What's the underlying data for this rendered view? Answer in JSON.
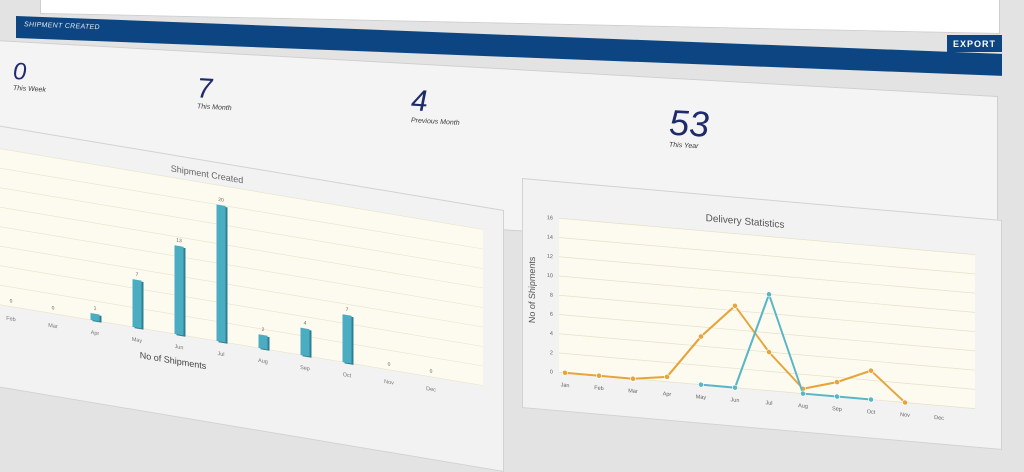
{
  "header": {
    "title": "SHIPMENT CREATED",
    "export_label": "EXPORT"
  },
  "stats": [
    {
      "value": "0",
      "label": "This Week"
    },
    {
      "value": "7",
      "label": "This Month"
    },
    {
      "value": "4",
      "label": "Previous Month"
    },
    {
      "value": "53",
      "label": "This Year"
    }
  ],
  "colors": {
    "header": "#0c4582",
    "bar": "#4badc2",
    "line_orange": "#e6a43a",
    "line_teal": "#58b6c7",
    "plot_bg": "#fdfbf0",
    "stat_number": "#1f2a6b"
  },
  "chart_data": [
    {
      "type": "bar",
      "title": "Shipment Created",
      "xlabel": "No of Shipments",
      "ylabel": "",
      "categories": [
        "Feb",
        "Mar",
        "Apr",
        "May",
        "Jun",
        "Jul",
        "Aug",
        "Sep",
        "Oct",
        "Nov",
        "Dec"
      ],
      "values": [
        0,
        0,
        1,
        7,
        13,
        20,
        2,
        4,
        7,
        0,
        0
      ],
      "ylim": [
        0,
        22
      ]
    },
    {
      "type": "line",
      "title": "Delivery Statistics",
      "xlabel": "",
      "ylabel": "No of Shipments",
      "categories": [
        "Jan",
        "Feb",
        "Mar",
        "Apr",
        "May",
        "Jun",
        "Jul",
        "Aug",
        "Sep",
        "Oct",
        "Nov",
        "Dec"
      ],
      "yticks": [
        "0",
        "2",
        "4",
        "6",
        "8",
        "10",
        "12",
        "14",
        "16"
      ],
      "ylim": [
        0,
        16
      ],
      "series": [
        {
          "color": "#e6a43a",
          "values": [
            0,
            0,
            0,
            0.5,
            5,
            8.5,
            4,
            0.5,
            1.5,
            3,
            0,
            null
          ]
        },
        {
          "color": "#58b6c7",
          "values": [
            null,
            null,
            null,
            null,
            0,
            0,
            10,
            0,
            0,
            0,
            null,
            null
          ]
        }
      ]
    }
  ]
}
